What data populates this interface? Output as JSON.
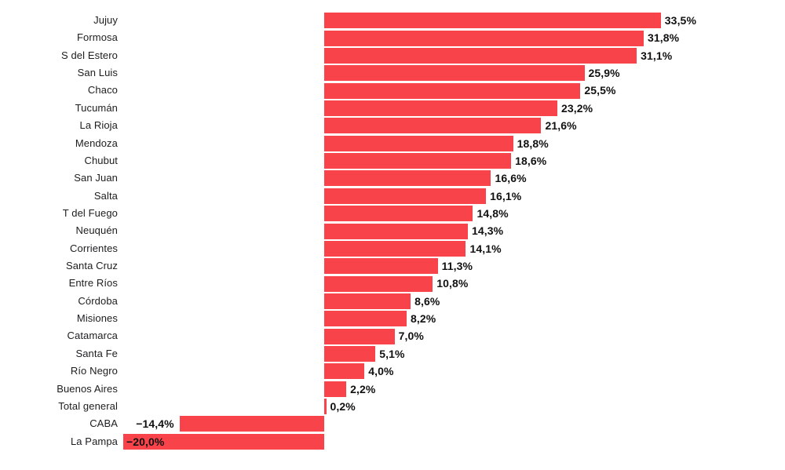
{
  "chart_data": {
    "type": "bar",
    "orientation": "horizontal",
    "title": "",
    "xlabel": "",
    "ylabel": "",
    "grid": false,
    "legend": false,
    "xlim": [
      -20.0,
      33.5
    ],
    "bar_color": "#f9434b",
    "text_color": "#1d1d1f",
    "categories": [
      "Jujuy",
      "Formosa",
      "S del Estero",
      "San Luis",
      "Chaco",
      "Tucumán",
      "La Rioja",
      "Mendoza",
      "Chubut",
      "San Juan",
      "Salta",
      "T del Fuego",
      "Neuquén",
      "Corrientes",
      "Santa Cruz",
      "Entre Ríos",
      "Córdoba",
      "Misiones",
      "Catamarca",
      "Santa Fe",
      "Río Negro",
      "Buenos Aires",
      "Total general",
      "CABA",
      "La Pampa"
    ],
    "values": [
      33.5,
      31.8,
      31.1,
      25.9,
      25.5,
      23.2,
      21.6,
      18.8,
      18.6,
      16.6,
      16.1,
      14.8,
      14.3,
      14.1,
      11.3,
      10.8,
      8.6,
      8.2,
      7.0,
      5.1,
      4.0,
      2.2,
      0.2,
      -14.4,
      -20.0
    ],
    "value_labels": [
      "33,5%",
      "31,8%",
      "31,1%",
      "25,9%",
      "25,5%",
      "23,2%",
      "21,6%",
      "18,8%",
      "18,6%",
      "16,6%",
      "16,1%",
      "14,8%",
      "14,3%",
      "14,1%",
      "11,3%",
      "10,8%",
      "8,6%",
      "8,2%",
      "7,0%",
      "5,1%",
      "4,0%",
      "2,2%",
      "0,2%",
      "−14,4%",
      "−20,0%"
    ]
  }
}
